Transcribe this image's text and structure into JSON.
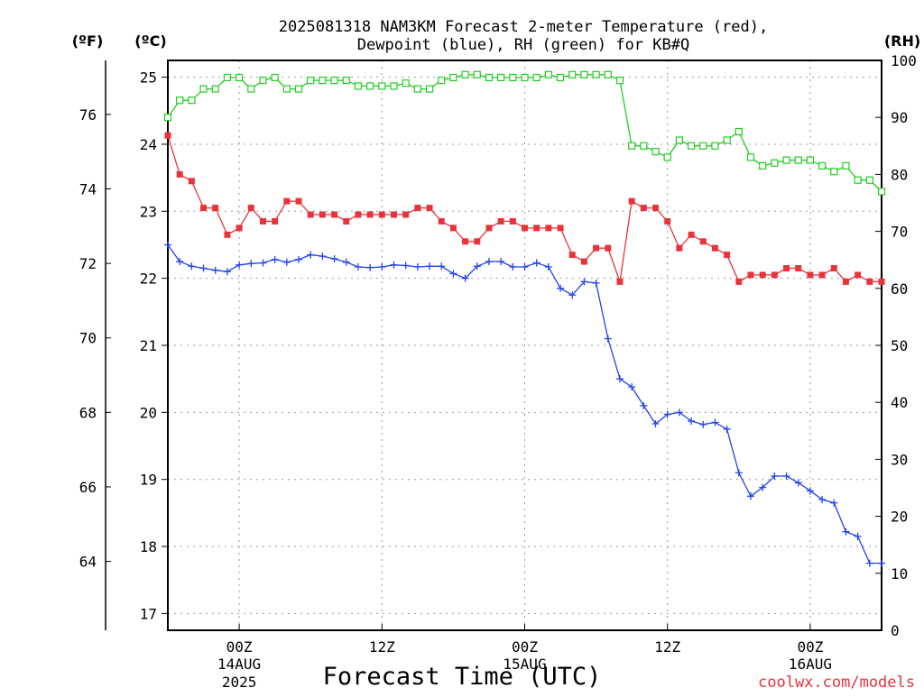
{
  "chart_data": {
    "type": "line",
    "title_line1": "2025081318 NAM3KM Forecast 2-meter Temperature (red),",
    "title_line2": "Dewpoint (blue), RH (green) for KB#Q",
    "xlabel": "Forecast Time (UTC)",
    "credit": "coolwx.com/models",
    "units": {
      "fahrenheit": "(ºF)",
      "celsius": "(ºC)",
      "rh": "(RH)"
    },
    "x_range_hours": [
      0,
      60
    ],
    "x_ticks": [
      {
        "hour": 6,
        "label": "00Z",
        "sub1": "14AUG",
        "sub2": "2025"
      },
      {
        "hour": 18,
        "label": "12Z",
        "sub1": "",
        "sub2": ""
      },
      {
        "hour": 30,
        "label": "00Z",
        "sub1": "15AUG",
        "sub2": ""
      },
      {
        "hour": 42,
        "label": "12Z",
        "sub1": "",
        "sub2": ""
      },
      {
        "hour": 54,
        "label": "00Z",
        "sub1": "16AUG",
        "sub2": ""
      }
    ],
    "celsius_axis": {
      "range": [
        16.75,
        25.25
      ],
      "ticks": [
        "17",
        "18",
        "19",
        "20",
        "21",
        "22",
        "23",
        "24",
        "25"
      ]
    },
    "fahrenheit_axis": {
      "ticks": [
        "64",
        "66",
        "68",
        "70",
        "72",
        "74",
        "76"
      ]
    },
    "rh_axis": {
      "range": [
        0,
        100
      ],
      "ticks": [
        "0",
        "10",
        "20",
        "30",
        "40",
        "50",
        "60",
        "70",
        "80",
        "90",
        "100"
      ]
    },
    "colors": {
      "temperature": "#e8333a",
      "dewpoint": "#2244ee",
      "rh": "#22cc22"
    },
    "series": [
      {
        "key": "temperature",
        "name": "2-meter Temperature",
        "units": "C",
        "marker": "filled-square",
        "values": [
          24.13,
          23.55,
          23.45,
          23.05,
          23.05,
          22.65,
          22.75,
          23.05,
          22.85,
          22.85,
          23.15,
          23.15,
          22.95,
          22.95,
          22.95,
          22.85,
          22.95,
          22.95,
          22.95,
          22.95,
          22.95,
          23.05,
          23.05,
          22.85,
          22.75,
          22.55,
          22.55,
          22.75,
          22.85,
          22.85,
          22.75,
          22.75,
          22.75,
          22.75,
          22.35,
          22.25,
          22.45,
          22.45,
          21.95,
          23.15,
          23.05,
          23.05,
          22.85,
          22.45,
          22.65,
          22.55,
          22.45,
          22.35,
          21.95,
          22.05,
          22.05,
          22.05,
          22.15,
          22.15,
          22.05,
          22.05,
          22.15,
          21.95,
          22.05,
          21.95,
          21.95
        ]
      },
      {
        "key": "dewpoint",
        "name": "Dewpoint",
        "units": "C",
        "marker": "plus",
        "values": [
          22.5,
          22.25,
          22.18,
          22.15,
          22.12,
          22.1,
          22.2,
          22.22,
          22.23,
          22.28,
          22.24,
          22.28,
          22.35,
          22.33,
          22.29,
          22.24,
          22.17,
          22.16,
          22.17,
          22.2,
          22.19,
          22.17,
          22.18,
          22.18,
          22.07,
          22.0,
          22.18,
          22.25,
          22.25,
          22.17,
          22.17,
          22.23,
          22.17,
          21.85,
          21.75,
          21.95,
          21.93,
          21.1,
          20.5,
          20.38,
          20.1,
          19.83,
          19.97,
          20.0,
          19.87,
          19.82,
          19.85,
          19.75,
          19.1,
          18.75,
          18.88,
          19.05,
          19.05,
          18.95,
          18.83,
          18.7,
          18.65,
          18.22,
          18.15,
          17.75,
          17.75
        ]
      },
      {
        "key": "rh",
        "name": "RH",
        "units": "%",
        "marker": "open-square",
        "values": [
          90,
          93,
          93,
          95,
          95,
          97,
          97,
          95,
          96.5,
          97,
          95,
          95,
          96.5,
          96.5,
          96.5,
          96.5,
          95.5,
          95.5,
          95.5,
          95.5,
          96,
          95,
          95,
          96.5,
          97,
          97.5,
          97.5,
          97,
          97,
          97,
          97,
          97,
          97.5,
          97,
          97.5,
          97.5,
          97.5,
          97.5,
          96.5,
          85,
          85,
          84,
          83,
          86,
          85,
          85,
          85,
          86,
          87.5,
          83,
          81.5,
          82,
          82.5,
          82.5,
          82.5,
          81.5,
          80.5,
          81.5,
          79,
          79,
          77
        ]
      }
    ]
  }
}
